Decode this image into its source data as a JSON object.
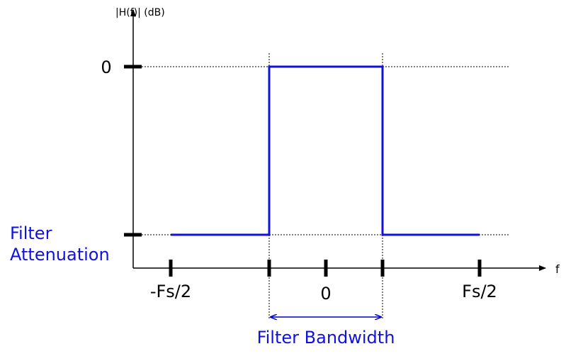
{
  "y_axis": {
    "label": "|H(f)| (dB)",
    "tick_label": "0"
  },
  "attenuation_label": [
    "Filter",
    "Attenuation"
  ],
  "x_axis": {
    "label": "f",
    "tick_labels": [
      "-Fs/2",
      "0",
      "Fs/2"
    ]
  },
  "bandwidth_label": "Filter Bandwidth"
}
